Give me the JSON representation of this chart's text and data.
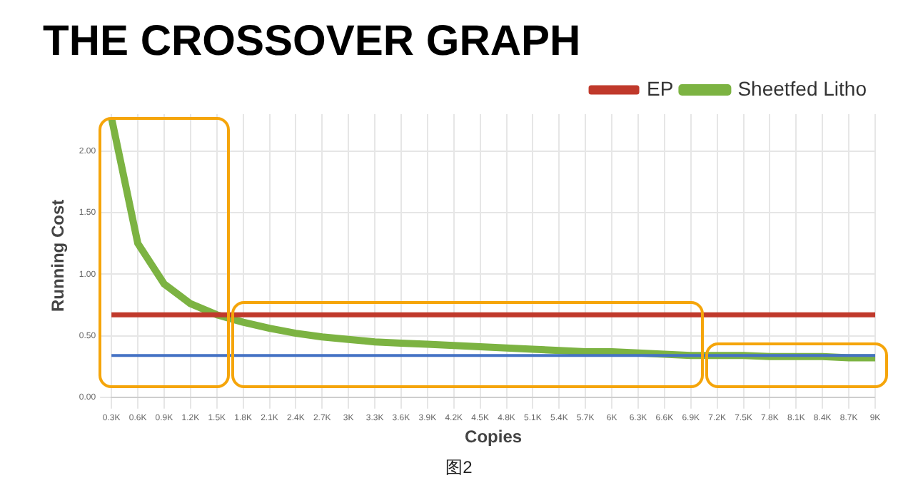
{
  "chart_data": {
    "type": "line",
    "title": "THE CROSSOVER GRAPH",
    "xlabel": "Copies",
    "ylabel": "Running Cost",
    "categories": [
      "0.3K",
      "0.6K",
      "0.9K",
      "1.2K",
      "1.5K",
      "1.8K",
      "2.1K",
      "2.4K",
      "2.7K",
      "3K",
      "3.3K",
      "3.6K",
      "3.9K",
      "4.2K",
      "4.5K",
      "4.8K",
      "5.1K",
      "5.4K",
      "5.7K",
      "6K",
      "6.3K",
      "6.6K",
      "6.9K",
      "7.2K",
      "7.5K",
      "7.8K",
      "8.1K",
      "8.4K",
      "8.7K",
      "9K"
    ],
    "series": [
      {
        "color": "#4472c4",
        "values": [
          0.34,
          0.34,
          0.34,
          0.34,
          0.34,
          0.34,
          0.34,
          0.34,
          0.34,
          0.34,
          0.34,
          0.34,
          0.34,
          0.34,
          0.34,
          0.34,
          0.34,
          0.34,
          0.34,
          0.34,
          0.34,
          0.34,
          0.34,
          0.34,
          0.34,
          0.34,
          0.34,
          0.34,
          0.34,
          0.34
        ]
      },
      {
        "name": "EP",
        "color": "#c0392b",
        "values": [
          0.67,
          0.67,
          0.67,
          0.67,
          0.67,
          0.67,
          0.67,
          0.67,
          0.67,
          0.67,
          0.67,
          0.67,
          0.67,
          0.67,
          0.67,
          0.67,
          0.67,
          0.67,
          0.67,
          0.67,
          0.67,
          0.67,
          0.67,
          0.67,
          0.67,
          0.67,
          0.67,
          0.67,
          0.67,
          0.67
        ]
      },
      {
        "name": "Sheetfed Litho",
        "color": "#7cb342",
        "values": [
          2.27,
          1.25,
          0.92,
          0.76,
          0.67,
          0.61,
          0.56,
          0.52,
          0.49,
          0.47,
          0.45,
          0.44,
          0.43,
          0.42,
          0.41,
          0.4,
          0.39,
          0.38,
          0.37,
          0.37,
          0.36,
          0.35,
          0.34,
          0.34,
          0.34,
          0.33,
          0.33,
          0.33,
          0.32,
          0.32
        ]
      }
    ],
    "ylim": [
      0,
      2.3
    ],
    "yticks": [
      {
        "value": 0,
        "label": "0.00"
      },
      {
        "value": 0.5,
        "label": "0.50"
      },
      {
        "value": 1,
        "label": "1.00"
      },
      {
        "value": 1.5,
        "label": "1.50"
      },
      {
        "value": 2,
        "label": "2.00"
      }
    ],
    "grid": true,
    "legend": "top right",
    "marker": "none",
    "line_style": "solid",
    "annotations": [
      "图2"
    ]
  }
}
